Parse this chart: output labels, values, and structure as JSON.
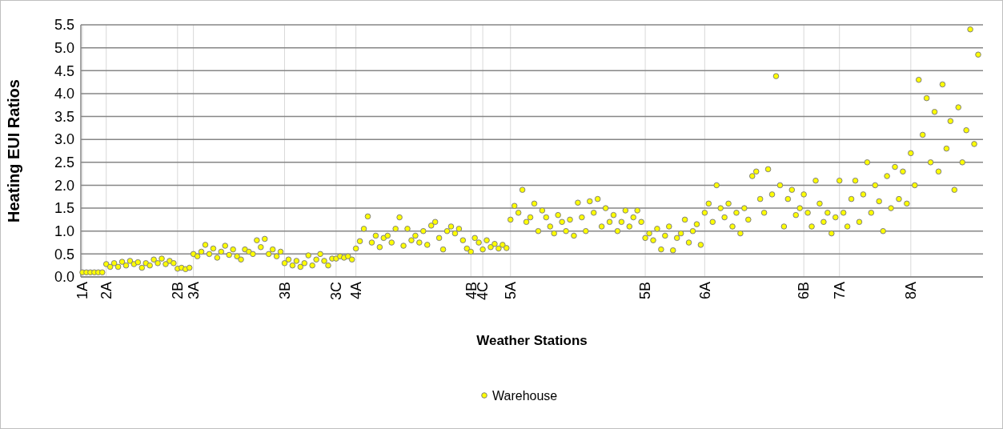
{
  "chart_data": {
    "type": "scatter",
    "xlabel": "Weather Stations",
    "ylabel": "Heating EUI Ratios",
    "categories": [
      "1A",
      null,
      null,
      null,
      null,
      null,
      "2A",
      null,
      null,
      null,
      null,
      null,
      null,
      null,
      null,
      null,
      null,
      null,
      null,
      null,
      null,
      null,
      null,
      null,
      "2B",
      null,
      null,
      null,
      "3A",
      null,
      null,
      null,
      null,
      null,
      null,
      null,
      null,
      null,
      null,
      null,
      null,
      null,
      null,
      null,
      null,
      null,
      null,
      null,
      null,
      null,
      null,
      "3B",
      null,
      null,
      null,
      null,
      null,
      null,
      null,
      null,
      null,
      null,
      null,
      null,
      "3C",
      null,
      null,
      null,
      null,
      "4A",
      null,
      null,
      null,
      null,
      null,
      null,
      null,
      null,
      null,
      null,
      null,
      null,
      null,
      null,
      null,
      null,
      null,
      null,
      null,
      null,
      null,
      null,
      null,
      null,
      null,
      null,
      null,
      null,
      "4B",
      null,
      null,
      "4C",
      null,
      null,
      null,
      null,
      null,
      null,
      "5A",
      null,
      null,
      null,
      null,
      null,
      null,
      null,
      null,
      null,
      null,
      null,
      null,
      null,
      null,
      null,
      null,
      null,
      null,
      null,
      null,
      null,
      null,
      null,
      null,
      null,
      null,
      null,
      null,
      null,
      null,
      null,
      null,
      null,
      "5B",
      null,
      null,
      null,
      null,
      null,
      null,
      null,
      null,
      null,
      null,
      null,
      null,
      null,
      null,
      "6A",
      null,
      null,
      null,
      null,
      null,
      null,
      null,
      null,
      null,
      null,
      null,
      null,
      null,
      null,
      null,
      null,
      null,
      null,
      null,
      null,
      null,
      null,
      null,
      null,
      "6B",
      null,
      null,
      null,
      null,
      null,
      null,
      null,
      null,
      "7A",
      null,
      null,
      null,
      null,
      null,
      null,
      null,
      null,
      null,
      null,
      null,
      null,
      null,
      null,
      null,
      null,
      null,
      "8A",
      null,
      null,
      null,
      null,
      null,
      null,
      null,
      null,
      null,
      null,
      null,
      null,
      null,
      null,
      null,
      null,
      null
    ],
    "ylim": [
      0,
      5.5
    ],
    "yticks": [
      {
        "value": 0,
        "label": "0.0"
      },
      {
        "value": 0.5,
        "label": "0.5"
      },
      {
        "value": 1,
        "label": "1.0"
      },
      {
        "value": 1.5,
        "label": "1.5"
      },
      {
        "value": 2,
        "label": "2.0"
      },
      {
        "value": 2.5,
        "label": "2.5"
      },
      {
        "value": 3,
        "label": "3.0"
      },
      {
        "value": 3.5,
        "label": "3.5"
      },
      {
        "value": 4,
        "label": "4.0"
      },
      {
        "value": 4.5,
        "label": "4.5"
      },
      {
        "value": 5,
        "label": "5.0"
      },
      {
        "value": 5.5,
        "label": "5.5"
      }
    ],
    "grid": true,
    "legend": "bottom",
    "marker": "circle",
    "series": [
      {
        "name": "Warehouse",
        "color": "#ffff00",
        "values": [
          0.1,
          0.1,
          0.1,
          0.1,
          0.1,
          0.1,
          0.28,
          0.22,
          0.3,
          0.22,
          0.33,
          0.25,
          0.35,
          0.28,
          0.32,
          0.2,
          0.3,
          0.25,
          0.38,
          0.3,
          0.4,
          0.28,
          0.35,
          0.3,
          0.18,
          0.2,
          0.17,
          0.2,
          0.5,
          0.45,
          0.55,
          0.7,
          0.5,
          0.62,
          0.42,
          0.55,
          0.68,
          0.48,
          0.6,
          0.45,
          0.38,
          0.6,
          0.55,
          0.5,
          0.8,
          0.65,
          0.83,
          0.5,
          0.6,
          0.45,
          0.55,
          0.3,
          0.38,
          0.25,
          0.35,
          0.22,
          0.3,
          0.47,
          0.25,
          0.38,
          0.5,
          0.35,
          0.25,
          0.4,
          0.4,
          0.45,
          0.42,
          0.45,
          0.38,
          0.62,
          0.78,
          1.05,
          1.32,
          0.75,
          0.9,
          0.65,
          0.85,
          0.9,
          0.75,
          1.05,
          1.3,
          0.68,
          1.05,
          0.8,
          0.9,
          0.75,
          1.0,
          0.7,
          1.12,
          1.2,
          0.85,
          0.6,
          1.0,
          1.1,
          0.95,
          1.05,
          0.8,
          0.62,
          0.55,
          0.85,
          0.75,
          0.6,
          0.8,
          0.65,
          0.72,
          0.62,
          0.7,
          0.63,
          1.25,
          1.55,
          1.4,
          1.9,
          1.2,
          1.3,
          1.6,
          1.0,
          1.45,
          1.3,
          1.1,
          0.95,
          1.35,
          1.2,
          1.0,
          1.25,
          0.9,
          1.62,
          1.3,
          1.0,
          1.65,
          1.4,
          1.7,
          1.1,
          1.5,
          1.2,
          1.35,
          1.0,
          1.2,
          1.45,
          1.1,
          1.3,
          1.45,
          1.2,
          0.85,
          0.95,
          0.8,
          1.05,
          0.6,
          0.9,
          1.1,
          0.58,
          0.85,
          0.95,
          1.25,
          0.75,
          1.0,
          1.15,
          0.7,
          1.4,
          1.6,
          1.2,
          2.0,
          1.5,
          1.3,
          1.6,
          1.1,
          1.4,
          0.95,
          1.5,
          1.25,
          2.2,
          2.3,
          1.7,
          1.4,
          2.35,
          1.8,
          4.38,
          2.0,
          1.1,
          1.7,
          1.9,
          1.35,
          1.5,
          1.8,
          1.4,
          1.1,
          2.1,
          1.6,
          1.2,
          1.4,
          0.95,
          1.3,
          2.1,
          1.4,
          1.1,
          1.7,
          2.1,
          1.2,
          1.8,
          2.5,
          1.4,
          2.0,
          1.65,
          1.0,
          2.2,
          1.5,
          2.4,
          1.7,
          2.3,
          1.6,
          2.7,
          2.0,
          4.3,
          3.1,
          3.9,
          2.5,
          3.6,
          2.3,
          4.2,
          2.8,
          3.4,
          1.9,
          3.7,
          2.5,
          3.2,
          5.4,
          2.9,
          4.85
        ]
      }
    ]
  }
}
